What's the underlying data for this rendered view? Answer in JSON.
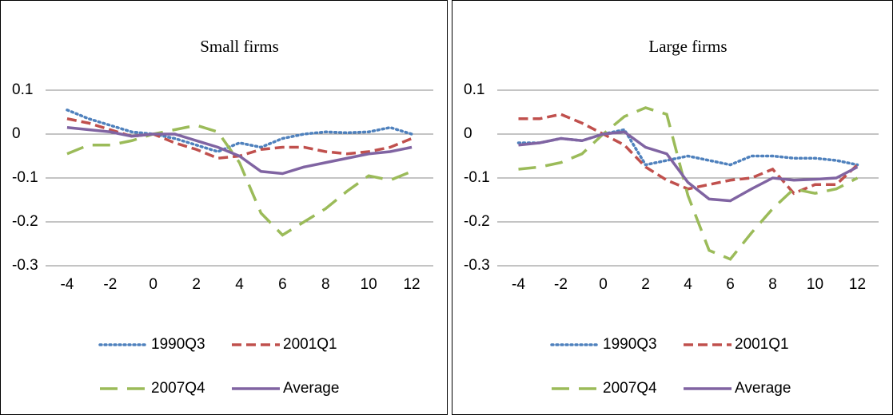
{
  "chart_data": [
    {
      "type": "line",
      "title": "Small firms",
      "x": [
        -4,
        -3,
        -2,
        -1,
        0,
        1,
        2,
        3,
        4,
        5,
        6,
        7,
        8,
        9,
        10,
        11,
        12
      ],
      "xlim": [
        -5,
        13
      ],
      "xticks": [
        -4,
        -2,
        0,
        2,
        4,
        6,
        8,
        10,
        12
      ],
      "ylim": [
        -0.3,
        0.1
      ],
      "yticks": [
        0.1,
        0,
        -0.1,
        -0.2,
        -0.3
      ],
      "grid": true,
      "series": [
        {
          "name": "1990Q3",
          "color": "#4f81bd",
          "dash": "dotted",
          "values": [
            0.055,
            0.035,
            0.02,
            0.005,
            0,
            -0.01,
            -0.025,
            -0.04,
            -0.02,
            -0.03,
            -0.01,
            0,
            0.005,
            0.003,
            0.005,
            0.015,
            0
          ]
        },
        {
          "name": "2001Q1",
          "color": "#c0504d",
          "dash": "dashed",
          "values": [
            0.035,
            0.025,
            0.01,
            -0.005,
            0,
            -0.02,
            -0.035,
            -0.055,
            -0.05,
            -0.035,
            -0.03,
            -0.03,
            -0.04,
            -0.045,
            -0.04,
            -0.03,
            -0.01
          ]
        },
        {
          "name": "2007Q4",
          "color": "#9bbb59",
          "dash": "long-dashed",
          "values": [
            -0.045,
            -0.025,
            -0.025,
            -0.015,
            0,
            0.01,
            0.02,
            0.005,
            -0.065,
            -0.18,
            -0.23,
            -0.2,
            -0.17,
            -0.13,
            -0.095,
            -0.105,
            -0.085
          ]
        },
        {
          "name": "Average",
          "color": "#8064a2",
          "dash": "solid",
          "values": [
            0.015,
            0.01,
            0.005,
            -0.005,
            0,
            0,
            -0.015,
            -0.03,
            -0.05,
            -0.085,
            -0.09,
            -0.075,
            -0.065,
            -0.055,
            -0.045,
            -0.04,
            -0.03
          ]
        }
      ]
    },
    {
      "type": "line",
      "title": "Large firms",
      "x": [
        -4,
        -3,
        -2,
        -1,
        0,
        1,
        2,
        3,
        4,
        5,
        6,
        7,
        8,
        9,
        10,
        11,
        12
      ],
      "xlim": [
        -5,
        13
      ],
      "xticks": [
        -4,
        -2,
        0,
        2,
        4,
        6,
        8,
        10,
        12
      ],
      "ylim": [
        -0.3,
        0.1
      ],
      "yticks": [
        0.1,
        0,
        -0.1,
        -0.2,
        -0.3
      ],
      "grid": true,
      "series": [
        {
          "name": "1990Q3",
          "color": "#4f81bd",
          "dash": "dotted",
          "values": [
            -0.02,
            -0.02,
            -0.01,
            -0.015,
            0,
            0.01,
            -0.07,
            -0.06,
            -0.05,
            -0.06,
            -0.07,
            -0.05,
            -0.05,
            -0.055,
            -0.055,
            -0.06,
            -0.07
          ]
        },
        {
          "name": "2001Q1",
          "color": "#c0504d",
          "dash": "dashed",
          "values": [
            0.035,
            0.035,
            0.045,
            0.025,
            0,
            -0.025,
            -0.075,
            -0.105,
            -0.125,
            -0.115,
            -0.105,
            -0.1,
            -0.08,
            -0.135,
            -0.115,
            -0.115,
            -0.07
          ]
        },
        {
          "name": "2007Q4",
          "color": "#9bbb59",
          "dash": "long-dashed",
          "values": [
            -0.08,
            -0.075,
            -0.065,
            -0.045,
            0,
            0.04,
            0.06,
            0.045,
            -0.14,
            -0.265,
            -0.285,
            -0.225,
            -0.17,
            -0.125,
            -0.135,
            -0.125,
            -0.1
          ]
        },
        {
          "name": "Average",
          "color": "#8064a2",
          "dash": "solid",
          "values": [
            -0.025,
            -0.02,
            -0.01,
            -0.015,
            0,
            0.005,
            -0.03,
            -0.045,
            -0.11,
            -0.148,
            -0.152,
            -0.125,
            -0.1,
            -0.105,
            -0.103,
            -0.1,
            -0.075
          ]
        }
      ]
    }
  ]
}
